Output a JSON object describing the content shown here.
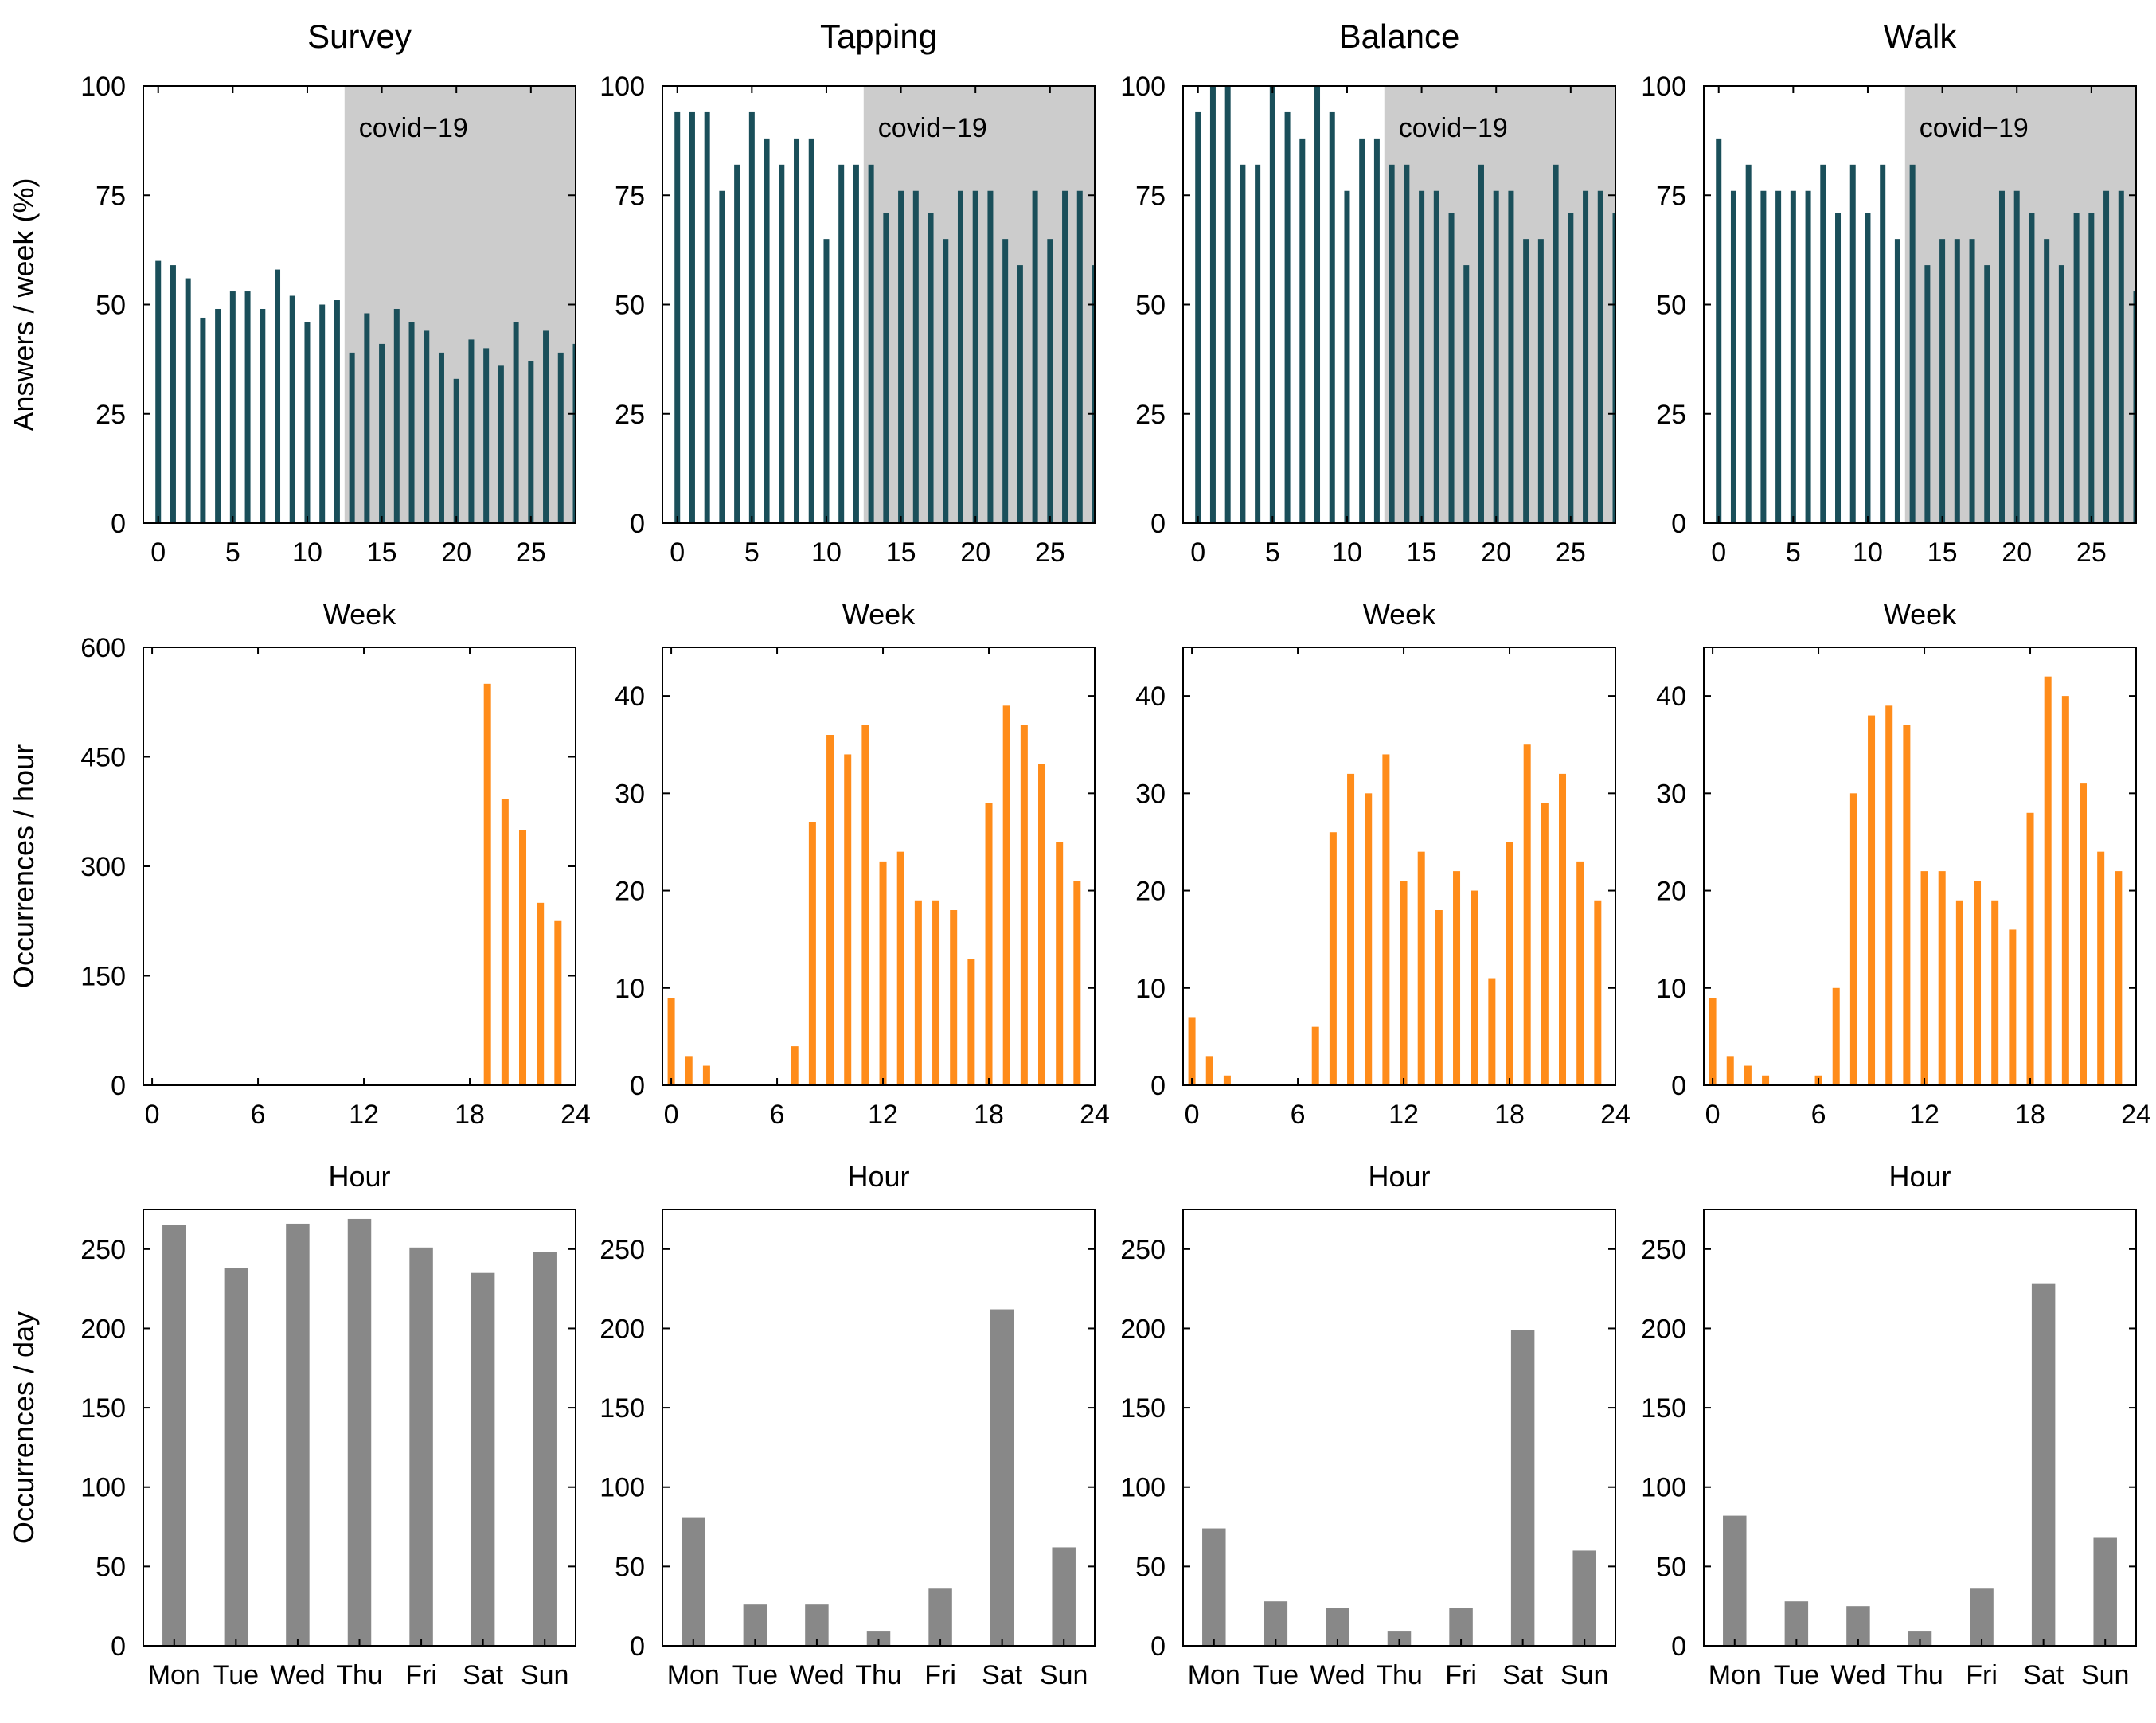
{
  "figure": {
    "columns": [
      "Survey",
      "Tapping",
      "Balance",
      "Walk"
    ]
  },
  "colors": {
    "weekly": "#1a4f5a",
    "hourly": "#ff8c1a",
    "daily": "#888888",
    "shade": "#cccccc"
  },
  "chart_data": [
    {
      "row": "weekly",
      "column": "Survey",
      "type": "bar",
      "title": "Survey",
      "xlabel": "Week",
      "ylabel": "Answers / week (%)",
      "x": [
        0,
        1,
        2,
        3,
        4,
        5,
        6,
        7,
        8,
        9,
        10,
        11,
        12,
        13,
        14,
        15,
        16,
        17,
        18,
        19,
        20,
        21,
        22,
        23,
        24,
        25,
        26,
        27,
        28
      ],
      "values": [
        60,
        59,
        56,
        47,
        49,
        53,
        53,
        49,
        58,
        52,
        46,
        50,
        51,
        39,
        48,
        41,
        49,
        46,
        44,
        39,
        33,
        42,
        40,
        36,
        46,
        37,
        44,
        39,
        41
      ],
      "xticks": [
        "0",
        "5",
        "10",
        "15",
        "20",
        "25"
      ],
      "xtick_values": [
        0,
        5,
        10,
        15,
        20,
        25
      ],
      "yticks": [
        "0",
        "25",
        "50",
        "75",
        "100"
      ],
      "ylim": [
        0,
        100
      ],
      "xlim": [
        -1,
        28
      ],
      "shade": {
        "from": 12.5,
        "to": 28,
        "label": "covid−19"
      }
    },
    {
      "row": "weekly",
      "column": "Tapping",
      "type": "bar",
      "title": "Tapping",
      "xlabel": "Week",
      "ylabel": "",
      "x": [
        0,
        1,
        2,
        3,
        4,
        5,
        6,
        7,
        8,
        9,
        10,
        11,
        12,
        13,
        14,
        15,
        16,
        17,
        18,
        19,
        20,
        21,
        22,
        23,
        24,
        25,
        26,
        27,
        28
      ],
      "values": [
        94,
        94,
        94,
        76,
        82,
        94,
        88,
        82,
        88,
        88,
        65,
        82,
        82,
        82,
        71,
        76,
        76,
        71,
        65,
        76,
        76,
        76,
        65,
        59,
        76,
        65,
        76,
        76,
        59
      ],
      "xticks": [
        "0",
        "5",
        "10",
        "15",
        "20",
        "25"
      ],
      "xtick_values": [
        0,
        5,
        10,
        15,
        20,
        25
      ],
      "yticks": [
        "0",
        "25",
        "50",
        "75",
        "100"
      ],
      "ylim": [
        0,
        100
      ],
      "xlim": [
        -1,
        28
      ],
      "shade": {
        "from": 12.5,
        "to": 28,
        "label": "covid−19"
      }
    },
    {
      "row": "weekly",
      "column": "Balance",
      "type": "bar",
      "title": "Balance",
      "xlabel": "Week",
      "ylabel": "",
      "x": [
        0,
        1,
        2,
        3,
        4,
        5,
        6,
        7,
        8,
        9,
        10,
        11,
        12,
        13,
        14,
        15,
        16,
        17,
        18,
        19,
        20,
        21,
        22,
        23,
        24,
        25,
        26,
        27,
        28
      ],
      "values": [
        94,
        100,
        100,
        82,
        82,
        100,
        94,
        88,
        100,
        94,
        76,
        88,
        88,
        82,
        82,
        76,
        76,
        71,
        59,
        82,
        76,
        76,
        65,
        65,
        82,
        71,
        76,
        76,
        71
      ],
      "xticks": [
        "0",
        "5",
        "10",
        "15",
        "20",
        "25"
      ],
      "xtick_values": [
        0,
        5,
        10,
        15,
        20,
        25
      ],
      "yticks": [
        "0",
        "25",
        "50",
        "75",
        "100"
      ],
      "ylim": [
        0,
        100
      ],
      "xlim": [
        -1,
        28
      ],
      "shade": {
        "from": 12.5,
        "to": 28,
        "label": "covid−19"
      }
    },
    {
      "row": "weekly",
      "column": "Walk",
      "type": "bar",
      "title": "Walk",
      "xlabel": "Week",
      "ylabel": "",
      "x": [
        0,
        1,
        2,
        3,
        4,
        5,
        6,
        7,
        8,
        9,
        10,
        11,
        12,
        13,
        14,
        15,
        16,
        17,
        18,
        19,
        20,
        21,
        22,
        23,
        24,
        25,
        26,
        27,
        28
      ],
      "values": [
        88,
        76,
        82,
        76,
        76,
        76,
        76,
        82,
        71,
        82,
        71,
        82,
        65,
        82,
        59,
        65,
        65,
        65,
        59,
        76,
        76,
        71,
        65,
        59,
        71,
        71,
        76,
        76,
        53
      ],
      "xticks": [
        "0",
        "5",
        "10",
        "15",
        "20",
        "25"
      ],
      "xtick_values": [
        0,
        5,
        10,
        15,
        20,
        25
      ],
      "yticks": [
        "0",
        "25",
        "50",
        "75",
        "100"
      ],
      "ylim": [
        0,
        100
      ],
      "xlim": [
        -1,
        28
      ],
      "shade": {
        "from": 12.5,
        "to": 28,
        "label": "covid−19"
      }
    },
    {
      "row": "hourly",
      "column": "Survey",
      "type": "bar",
      "xlabel": "Hour",
      "ylabel": "Occurrences / hour",
      "x": [
        0,
        1,
        2,
        3,
        4,
        5,
        6,
        7,
        8,
        9,
        10,
        11,
        12,
        13,
        14,
        15,
        16,
        17,
        18,
        19,
        20,
        21,
        22,
        23
      ],
      "values": [
        0,
        0,
        0,
        0,
        0,
        0,
        0,
        0,
        0,
        0,
        0,
        0,
        0,
        0,
        0,
        0,
        0,
        0,
        0,
        550,
        392,
        350,
        250,
        225
      ],
      "xticks": [
        "0",
        "6",
        "12",
        "18",
        "24"
      ],
      "xtick_values": [
        0,
        6,
        12,
        18,
        24
      ],
      "yticks": [
        "0",
        "150",
        "300",
        "450",
        "600"
      ],
      "ylim": [
        0,
        600
      ],
      "xlim": [
        -0.5,
        24
      ]
    },
    {
      "row": "hourly",
      "column": "Tapping",
      "type": "bar",
      "xlabel": "Hour",
      "ylabel": "",
      "x": [
        0,
        1,
        2,
        3,
        4,
        5,
        6,
        7,
        8,
        9,
        10,
        11,
        12,
        13,
        14,
        15,
        16,
        17,
        18,
        19,
        20,
        21,
        22,
        23
      ],
      "values": [
        9,
        3,
        2,
        0,
        0,
        0,
        0,
        4,
        27,
        36,
        34,
        37,
        23,
        24,
        19,
        19,
        18,
        13,
        29,
        39,
        37,
        33,
        25,
        21
      ],
      "xticks": [
        "0",
        "6",
        "12",
        "18",
        "24"
      ],
      "xtick_values": [
        0,
        6,
        12,
        18,
        24
      ],
      "yticks": [
        "0",
        "10",
        "20",
        "30",
        "40"
      ],
      "ylim": [
        0,
        45
      ],
      "xlim": [
        -0.5,
        24
      ]
    },
    {
      "row": "hourly",
      "column": "Balance",
      "type": "bar",
      "xlabel": "Hour",
      "ylabel": "",
      "x": [
        0,
        1,
        2,
        3,
        4,
        5,
        6,
        7,
        8,
        9,
        10,
        11,
        12,
        13,
        14,
        15,
        16,
        17,
        18,
        19,
        20,
        21,
        22,
        23
      ],
      "values": [
        7,
        3,
        1,
        0,
        0,
        0,
        0,
        6,
        26,
        32,
        30,
        34,
        21,
        24,
        18,
        22,
        20,
        11,
        25,
        35,
        29,
        32,
        23,
        19
      ],
      "xticks": [
        "0",
        "6",
        "12",
        "18",
        "24"
      ],
      "xtick_values": [
        0,
        6,
        12,
        18,
        24
      ],
      "yticks": [
        "0",
        "10",
        "20",
        "30",
        "40"
      ],
      "ylim": [
        0,
        45
      ],
      "xlim": [
        -0.5,
        24
      ]
    },
    {
      "row": "hourly",
      "column": "Walk",
      "type": "bar",
      "xlabel": "Hour",
      "ylabel": "",
      "x": [
        0,
        1,
        2,
        3,
        4,
        5,
        6,
        7,
        8,
        9,
        10,
        11,
        12,
        13,
        14,
        15,
        16,
        17,
        18,
        19,
        20,
        21,
        22,
        23
      ],
      "values": [
        9,
        3,
        2,
        1,
        0,
        0,
        1,
        10,
        30,
        38,
        39,
        37,
        22,
        22,
        19,
        21,
        19,
        16,
        28,
        42,
        40,
        31,
        24,
        22
      ],
      "xticks": [
        "0",
        "6",
        "12",
        "18",
        "24"
      ],
      "xtick_values": [
        0,
        6,
        12,
        18,
        24
      ],
      "yticks": [
        "0",
        "10",
        "20",
        "30",
        "40"
      ],
      "ylim": [
        0,
        45
      ],
      "xlim": [
        -0.5,
        24
      ]
    },
    {
      "row": "daily",
      "column": "Survey",
      "type": "bar",
      "xlabel": "",
      "ylabel": "Occurrences / day",
      "categories": [
        "Mon",
        "Tue",
        "Wed",
        "Thu",
        "Fri",
        "Sat",
        "Sun"
      ],
      "values": [
        265,
        238,
        266,
        269,
        251,
        235,
        248
      ],
      "yticks": [
        "0",
        "50",
        "100",
        "150",
        "200",
        "250"
      ],
      "ylim": [
        0,
        275
      ]
    },
    {
      "row": "daily",
      "column": "Tapping",
      "type": "bar",
      "xlabel": "",
      "ylabel": "",
      "categories": [
        "Mon",
        "Tue",
        "Wed",
        "Thu",
        "Fri",
        "Sat",
        "Sun"
      ],
      "values": [
        81,
        26,
        26,
        9,
        36,
        212,
        62
      ],
      "yticks": [
        "0",
        "50",
        "100",
        "150",
        "200",
        "250"
      ],
      "ylim": [
        0,
        275
      ]
    },
    {
      "row": "daily",
      "column": "Balance",
      "type": "bar",
      "xlabel": "",
      "ylabel": "",
      "categories": [
        "Mon",
        "Tue",
        "Wed",
        "Thu",
        "Fri",
        "Sat",
        "Sun"
      ],
      "values": [
        74,
        28,
        24,
        9,
        24,
        199,
        60
      ],
      "yticks": [
        "0",
        "50",
        "100",
        "150",
        "200",
        "250"
      ],
      "ylim": [
        0,
        275
      ]
    },
    {
      "row": "daily",
      "column": "Walk",
      "type": "bar",
      "xlabel": "",
      "ylabel": "",
      "categories": [
        "Mon",
        "Tue",
        "Wed",
        "Thu",
        "Fri",
        "Sat",
        "Sun"
      ],
      "values": [
        82,
        28,
        25,
        9,
        36,
        228,
        68
      ],
      "yticks": [
        "0",
        "50",
        "100",
        "150",
        "200",
        "250"
      ],
      "ylim": [
        0,
        275
      ]
    }
  ]
}
